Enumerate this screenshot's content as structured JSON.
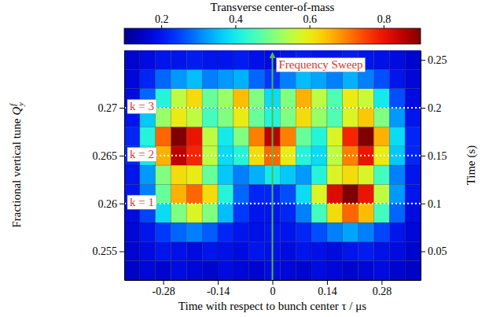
{
  "chart_data": {
    "type": "heatmap",
    "x_label": "Time with respect to bunch center τ / μs",
    "y_label": {
      "text": "Fractional vertical tune",
      "symbol": "Q",
      "superscript": "f",
      "subscript": "y"
    },
    "y2_label": "Time (s)",
    "xlim": [
      -0.38,
      0.38
    ],
    "xticks": [
      -0.28,
      -0.14,
      0,
      0.14,
      0.28
    ],
    "ylim": [
      0.252,
      0.276
    ],
    "yticks": [
      0.255,
      0.26,
      0.265,
      0.27
    ],
    "y2lim": [
      0.02,
      0.26
    ],
    "y2ticks": [
      0.05,
      0.1,
      0.15,
      0.2,
      0.25
    ],
    "colorbar": {
      "label": "Transverse center-of-mass",
      "lim": [
        0.1,
        0.9
      ],
      "ticks": [
        0.2,
        0.4,
        0.6,
        0.8
      ]
    },
    "cells": {
      "axis": "y2",
      "x": [
        -0.36,
        -0.32,
        -0.28,
        -0.24,
        -0.2,
        -0.16,
        -0.12,
        -0.08,
        -0.04,
        0,
        0.04,
        0.08,
        0.12,
        0.16,
        0.2,
        0.24,
        0.28,
        0.32,
        0.36
      ],
      "y": [
        0.03,
        0.05,
        0.07,
        0.09,
        0.11,
        0.13,
        0.15,
        0.17,
        0.19,
        0.21,
        0.23,
        0.25
      ],
      "values": [
        [
          0.15,
          0.17,
          0.16,
          0.18,
          0.17,
          0.16,
          0.18,
          0.17,
          0.16,
          0.18,
          0.17,
          0.16,
          0.18,
          0.17,
          0.16,
          0.17,
          0.18,
          0.16,
          0.15
        ],
        [
          0.16,
          0.18,
          0.2,
          0.19,
          0.18,
          0.2,
          0.19,
          0.18,
          0.2,
          0.19,
          0.18,
          0.2,
          0.19,
          0.18,
          0.2,
          0.21,
          0.19,
          0.18,
          0.16
        ],
        [
          0.17,
          0.2,
          0.24,
          0.28,
          0.3,
          0.27,
          0.22,
          0.2,
          0.19,
          0.2,
          0.2,
          0.22,
          0.26,
          0.3,
          0.33,
          0.3,
          0.25,
          0.2,
          0.17
        ],
        [
          0.18,
          0.25,
          0.38,
          0.5,
          0.58,
          0.5,
          0.35,
          0.24,
          0.2,
          0.2,
          0.22,
          0.3,
          0.45,
          0.62,
          0.72,
          0.65,
          0.45,
          0.28,
          0.18
        ],
        [
          0.2,
          0.3,
          0.48,
          0.66,
          0.72,
          0.62,
          0.42,
          0.28,
          0.22,
          0.22,
          0.26,
          0.38,
          0.58,
          0.82,
          0.9,
          0.8,
          0.55,
          0.32,
          0.2
        ],
        [
          0.2,
          0.32,
          0.5,
          0.62,
          0.6,
          0.48,
          0.36,
          0.3,
          0.34,
          0.4,
          0.36,
          0.32,
          0.42,
          0.58,
          0.62,
          0.58,
          0.45,
          0.3,
          0.2
        ],
        [
          0.22,
          0.4,
          0.66,
          0.85,
          0.78,
          0.55,
          0.38,
          0.42,
          0.62,
          0.72,
          0.6,
          0.42,
          0.38,
          0.55,
          0.7,
          0.8,
          0.6,
          0.36,
          0.22
        ],
        [
          0.22,
          0.42,
          0.72,
          0.9,
          0.8,
          0.55,
          0.4,
          0.5,
          0.7,
          0.85,
          0.7,
          0.48,
          0.42,
          0.58,
          0.78,
          0.9,
          0.66,
          0.38,
          0.22
        ],
        [
          0.2,
          0.36,
          0.52,
          0.6,
          0.55,
          0.45,
          0.5,
          0.6,
          0.48,
          0.42,
          0.5,
          0.62,
          0.52,
          0.46,
          0.58,
          0.64,
          0.5,
          0.32,
          0.2
        ],
        [
          0.18,
          0.28,
          0.42,
          0.55,
          0.62,
          0.48,
          0.52,
          0.65,
          0.5,
          0.38,
          0.5,
          0.66,
          0.55,
          0.46,
          0.6,
          0.56,
          0.4,
          0.26,
          0.18
        ],
        [
          0.17,
          0.22,
          0.28,
          0.32,
          0.35,
          0.3,
          0.32,
          0.34,
          0.28,
          0.24,
          0.3,
          0.35,
          0.33,
          0.3,
          0.34,
          0.3,
          0.26,
          0.2,
          0.17
        ],
        [
          0.16,
          0.18,
          0.2,
          0.2,
          0.21,
          0.2,
          0.2,
          0.21,
          0.19,
          0.18,
          0.2,
          0.21,
          0.2,
          0.2,
          0.21,
          0.2,
          0.19,
          0.18,
          0.16
        ]
      ]
    },
    "annotations": [
      {
        "text": "k = 1",
        "y": 0.26
      },
      {
        "text": "k = 2",
        "y": 0.265
      },
      {
        "text": "k = 3",
        "y": 0.27
      },
      {
        "text": "Frequency Sweep",
        "x": 0
      }
    ]
  }
}
